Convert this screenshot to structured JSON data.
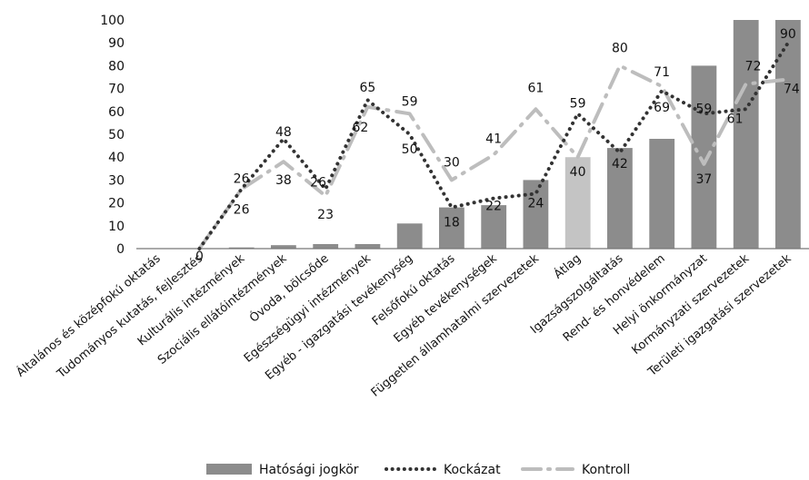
{
  "chart_data": {
    "type": "bar",
    "categories": [
      "Általános és középfokú oktatás",
      "Tudományos kutatás, fejlesztés",
      "Kulturális intézmények",
      "Szociális ellátóintézmények",
      "Óvoda, bölcsőde",
      "Egészségügyi intézmények",
      "Egyéb - igazgatási tevékenység",
      "Felsőfokú oktatás",
      "Egyéb tevékenységek",
      "Független államhatalmi szervezetek",
      "Átlag",
      "Igazságszolgáltatás",
      "Rend- és honvédelem",
      "Helyi önkormányzat",
      "Kormányzati szervezetek",
      "Területi igazgatási szervezetek"
    ],
    "highlight_category": "Átlag",
    "series": [
      {
        "name": "Hatósági jogkör",
        "kind": "bar",
        "color": "#8c8c8c",
        "highlight_color": "#c4c4c4",
        "values": [
          0,
          0,
          0.5,
          1.5,
          2,
          2,
          11,
          18,
          19,
          30,
          40,
          44,
          48,
          80,
          100,
          100
        ]
      },
      {
        "name": "Kockázat",
        "kind": "line-dotted",
        "color": "#333333",
        "values": [
          null,
          0,
          26,
          48,
          26,
          65,
          50,
          18,
          22,
          24,
          59,
          42,
          69,
          59,
          61,
          90
        ],
        "labels": [
          null,
          "0",
          "26",
          "48",
          "26",
          "65",
          "50",
          "18",
          "22",
          "24",
          "59",
          "42",
          "69",
          "59",
          "61",
          "90"
        ]
      },
      {
        "name": "Kontroll",
        "kind": "line-dashdot",
        "color": "#bdbdbd",
        "values": [
          null,
          0,
          26,
          38,
          23,
          62,
          59,
          30,
          41,
          61,
          40,
          80,
          71,
          37,
          72,
          74
        ],
        "labels": [
          null,
          "",
          "26",
          "38",
          "23",
          "62",
          "59",
          "30",
          "41",
          "61",
          "40",
          "80",
          "71",
          "37",
          "72",
          "74"
        ]
      }
    ],
    "y_ticks": [
      "0",
      "10",
      "20",
      "30",
      "40",
      "50",
      "60",
      "70",
      "80",
      "90",
      "100"
    ],
    "ylim": [
      0,
      100
    ],
    "grid": false,
    "legend_position": "bottom"
  }
}
